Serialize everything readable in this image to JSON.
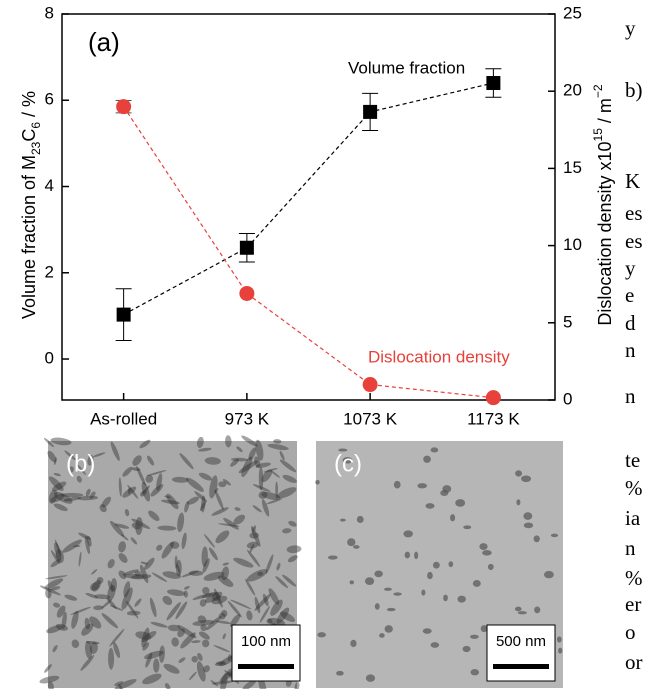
{
  "chart_data": {
    "type": "line",
    "annotation": "(a)",
    "categories": [
      "As-rolled",
      "973 K",
      "1073 K",
      "1173 K"
    ],
    "y_label": [
      "Volume fraction of M",
      "23",
      "C",
      "6",
      " / %"
    ],
    "y2_label": [
      "Dislocation density x10",
      "15",
      " / m",
      "−2"
    ],
    "ylim": [
      -0.95,
      8
    ],
    "yticks": [
      0,
      2,
      4,
      6,
      8
    ],
    "y2lim": [
      0,
      25
    ],
    "y2ticks": [
      0,
      5,
      10,
      15,
      20,
      25
    ],
    "series": [
      {
        "name": "Volume fraction",
        "color": "#000000",
        "marker": "square",
        "values": [
          1.03,
          2.58,
          5.73,
          6.4
        ],
        "errors": [
          0.6,
          0.33,
          0.43,
          0.33
        ]
      },
      {
        "name": "Dislocation density",
        "color": "#e8403a",
        "marker": "circle",
        "axis": "y2",
        "values": [
          19.0,
          6.9,
          1.0,
          0.15
        ],
        "errors": [
          0.4,
          0,
          0,
          0
        ]
      }
    ]
  },
  "images": [
    {
      "label": "(b)",
      "scale": "100 nm"
    },
    {
      "label": "(c)",
      "scale": "500 nm"
    }
  ],
  "side_text": [
    "y",
    "b)",
    "K",
    "es",
    "es",
    "y",
    "e",
    "d",
    "n",
    "n",
    "te",
    "%",
    "ia",
    "n",
    "%",
    "er",
    "o",
    "or"
  ]
}
